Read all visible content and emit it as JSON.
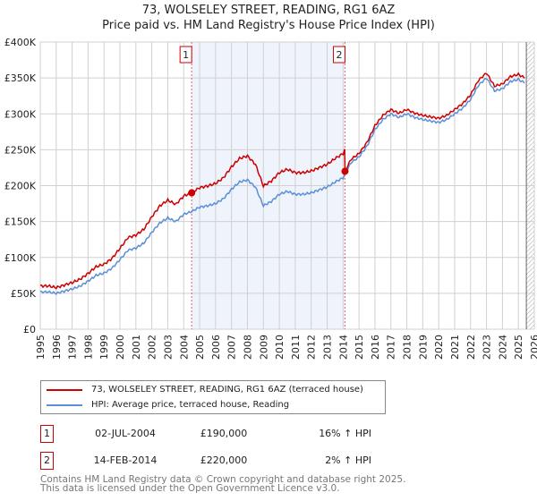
{
  "header": {
    "title": "73, WOLSELEY STREET, READING, RG1 6AZ",
    "subtitle": "Price paid vs. HM Land Registry's House Price Index (HPI)"
  },
  "legend": {
    "property": "73, WOLSELEY STREET, READING, RG1 6AZ (terraced house)",
    "hpi": "HPI: Average price, terraced house, Reading"
  },
  "sales": [
    {
      "num": "1",
      "date": "02-JUL-2004",
      "price": "£190,000",
      "hpi": "16% ↑ HPI",
      "year": 2004.5,
      "value": 190000
    },
    {
      "num": "2",
      "date": "14-FEB-2014",
      "price": "£220,000",
      "hpi": "2% ↑ HPI",
      "year": 2014.12,
      "value": 220000
    }
  ],
  "footer": {
    "line1": "Contains HM Land Registry data © Crown copyright and database right 2025.",
    "line2": "This data is licensed under the Open Government Licence v3.0."
  },
  "colors": {
    "property": "#cc0000",
    "hpi": "#5b8fd6",
    "shade": "#eef3fc"
  },
  "chart_data": {
    "type": "line",
    "title": "73, WOLSELEY STREET, READING, RG1 6AZ",
    "xlim": [
      1995,
      2026
    ],
    "ylim": [
      0,
      400000
    ],
    "yticks": [
      0,
      50000,
      100000,
      150000,
      200000,
      250000,
      300000,
      350000,
      400000
    ],
    "ytick_labels": [
      "£0",
      "£50K",
      "£100K",
      "£150K",
      "£200K",
      "£250K",
      "£300K",
      "£350K",
      "£400K"
    ],
    "xticks": [
      "1995",
      "1996",
      "1997",
      "1998",
      "1999",
      "2000",
      "2001",
      "2002",
      "2003",
      "2004",
      "2005",
      "2006",
      "2007",
      "2008",
      "2009",
      "2010",
      "2011",
      "2012",
      "2013",
      "2014",
      "2015",
      "2016",
      "2017",
      "2018",
      "2019",
      "2020",
      "2021",
      "2022",
      "2023",
      "2024",
      "2025",
      "2026"
    ],
    "forecast_from": 2025.5,
    "hpi_series": {
      "x": [
        1995,
        1995.5,
        1996,
        1996.5,
        1997,
        1997.5,
        1998,
        1998.5,
        1999,
        1999.5,
        2000,
        2000.5,
        2001,
        2001.5,
        2002,
        2002.5,
        2003,
        2003.5,
        2004,
        2004.5,
        2005,
        2005.5,
        2006,
        2006.5,
        2007,
        2007.5,
        2008,
        2008.5,
        2009,
        2009.5,
        2010,
        2010.5,
        2011,
        2011.5,
        2012,
        2012.5,
        2013,
        2013.5,
        2014,
        2014.12,
        2014.5,
        2015,
        2015.5,
        2016,
        2016.5,
        2017,
        2017.5,
        2018,
        2018.5,
        2019,
        2019.5,
        2020,
        2020.5,
        2021,
        2021.5,
        2022,
        2022.5,
        2023,
        2023.5,
        2024,
        2024.5,
        2025,
        2025.4
      ],
      "y": [
        52000,
        52000,
        50000,
        53000,
        56000,
        60000,
        67000,
        75000,
        78000,
        85000,
        97000,
        110000,
        113000,
        120000,
        135000,
        148000,
        155000,
        150000,
        160000,
        164000,
        170000,
        172000,
        175000,
        182000,
        195000,
        205000,
        208000,
        198000,
        172000,
        178000,
        188000,
        192000,
        188000,
        188000,
        190000,
        194000,
        198000,
        205000,
        211000,
        216000,
        232000,
        240000,
        255000,
        278000,
        292000,
        300000,
        295000,
        300000,
        295000,
        292000,
        290000,
        288000,
        292000,
        300000,
        308000,
        320000,
        340000,
        350000,
        332000,
        335000,
        345000,
        348000,
        343000
      ]
    },
    "property_ratio_before_sale2": 1.16,
    "property_ratio_after_sale2": 1.02
  }
}
